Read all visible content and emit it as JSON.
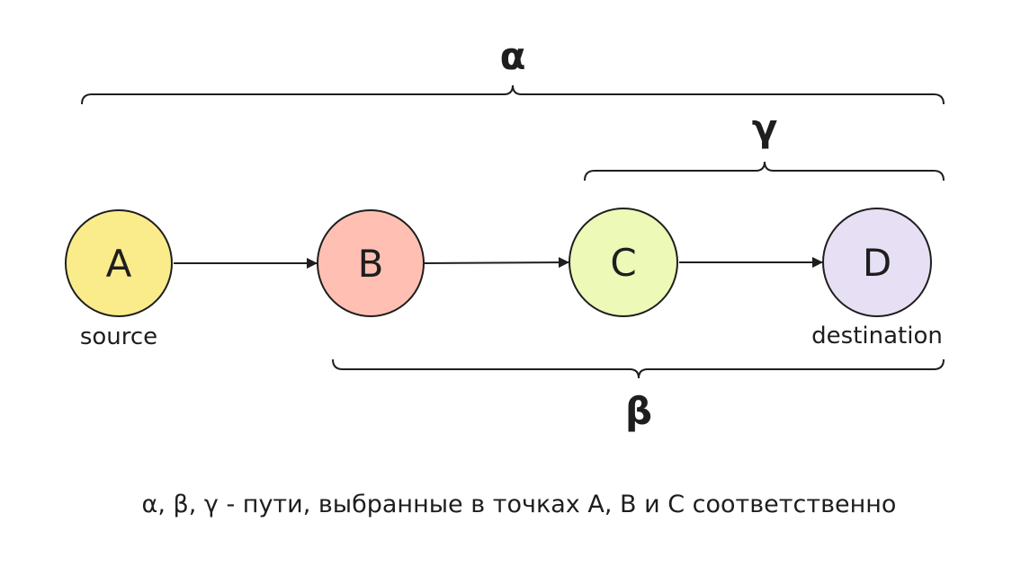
{
  "nodes": [
    {
      "id": "A",
      "letter": "A",
      "caption": "source",
      "color": "#fbec8b"
    },
    {
      "id": "B",
      "letter": "B",
      "caption": "",
      "color": "#ffc0b3"
    },
    {
      "id": "C",
      "letter": "C",
      "caption": "",
      "color": "#ecf9b7"
    },
    {
      "id": "D",
      "letter": "D",
      "caption": "destination",
      "color": "#e7e0f5"
    }
  ],
  "edges": [
    {
      "from": "A",
      "to": "B"
    },
    {
      "from": "B",
      "to": "C"
    },
    {
      "from": "C",
      "to": "D"
    }
  ],
  "paths": [
    {
      "label": "α",
      "starts_at": "A",
      "ends_at": "D"
    },
    {
      "label": "β",
      "starts_at": "B",
      "ends_at": "D"
    },
    {
      "label": "γ",
      "starts_at": "C",
      "ends_at": "D"
    }
  ],
  "caption": "α, β, γ  - пути, выбранные в точках A, B и C соответственно"
}
